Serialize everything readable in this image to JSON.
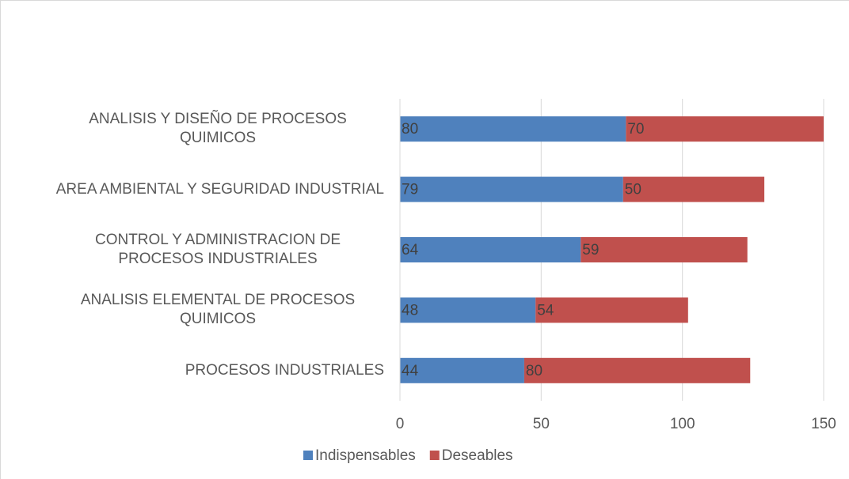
{
  "chart_data": {
    "type": "stacked_barh",
    "categories": [
      "ANALISIS Y DISEÑO DE PROCESOS QUIMICOS",
      "AREA AMBIENTAL Y SEGURIDAD INDUSTRIAL",
      "CONTROL Y ADMINISTRACION DE PROCESOS INDUSTRIALES",
      "ANALISIS ELEMENTAL DE PROCESOS QUIMICOS",
      "PROCESOS INDUSTRIALES"
    ],
    "series": [
      {
        "name": "Indispensables",
        "color": "#4f81bd",
        "values": [
          80,
          79,
          64,
          48,
          44
        ]
      },
      {
        "name": "Deseables",
        "color": "#c0504d",
        "values": [
          70,
          50,
          59,
          54,
          80
        ]
      }
    ],
    "xlim": [
      0,
      150
    ],
    "xticks": [
      0,
      50,
      100,
      150
    ],
    "grid": true,
    "legend": "bottom",
    "data_labels": true
  }
}
